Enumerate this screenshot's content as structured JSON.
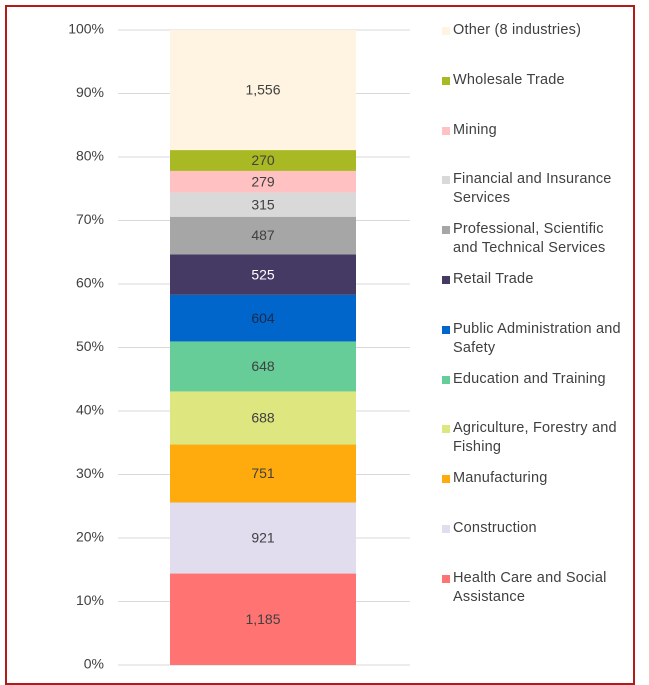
{
  "chart_data": {
    "type": "stacked_bar_100",
    "ylim": [
      0,
      100
    ],
    "yticks": [
      {
        "value": 0,
        "label": "0%"
      },
      {
        "value": 10,
        "label": "10%"
      },
      {
        "value": 20,
        "label": "20%"
      },
      {
        "value": 30,
        "label": "30%"
      },
      {
        "value": 40,
        "label": "40%"
      },
      {
        "value": 50,
        "label": "50%"
      },
      {
        "value": 60,
        "label": "60%"
      },
      {
        "value": 70,
        "label": "70%"
      },
      {
        "value": 80,
        "label": "80%"
      },
      {
        "value": 90,
        "label": "90%"
      },
      {
        "value": 100,
        "label": "100%"
      }
    ],
    "grid": true,
    "legend": "right",
    "series": [
      {
        "name": "Health Care and Social Assistance",
        "color": "#ff7373",
        "values": [
          1185
        ],
        "value_labels": [
          "1,185"
        ]
      },
      {
        "name": "Construction",
        "color": "#e1ddef",
        "values": [
          921
        ],
        "value_labels": [
          "921"
        ]
      },
      {
        "name": "Manufacturing",
        "color": "#ffab0d",
        "values": [
          751
        ],
        "value_labels": [
          "751"
        ]
      },
      {
        "name": "Agriculture, Forestry and Fishing",
        "color": "#dde67f",
        "values": [
          688
        ],
        "value_labels": [
          "688"
        ]
      },
      {
        "name": "Education and Training",
        "color": "#66cc98",
        "values": [
          648
        ],
        "value_labels": [
          "648"
        ]
      },
      {
        "name": "Public Administration and Safety",
        "color": "#0066cc",
        "values": [
          604
        ],
        "value_labels": [
          "604"
        ]
      },
      {
        "name": "Retail Trade",
        "color": "#453a64",
        "values": [
          525
        ],
        "value_labels": [
          "525"
        ]
      },
      {
        "name": "Professional, Scientific and Technical Services",
        "color": "#a6a6a6",
        "values": [
          487
        ],
        "value_labels": [
          "487"
        ]
      },
      {
        "name": "Financial and Insurance Services",
        "color": "#d9d9d9",
        "values": [
          315
        ],
        "value_labels": [
          "315"
        ]
      },
      {
        "name": "Mining",
        "color": "#ffc1c1",
        "values": [
          279
        ],
        "value_labels": [
          "279"
        ]
      },
      {
        "name": "Wholesale Trade",
        "color": "#a9b923",
        "values": [
          270
        ],
        "value_labels": [
          "270"
        ]
      },
      {
        "name": "Other (8 industries)",
        "color": "#fff4e1",
        "values": [
          1556
        ],
        "value_labels": [
          "1,556"
        ]
      }
    ]
  }
}
